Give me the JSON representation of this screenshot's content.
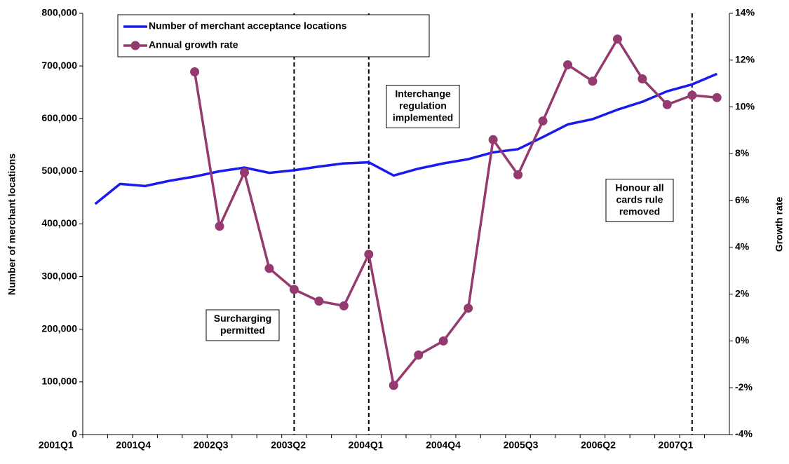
{
  "chart_data": {
    "type": "line",
    "categories": [
      "2001Q1",
      null,
      null,
      "2001Q4",
      null,
      null,
      "2002Q3",
      null,
      null,
      "2003Q2",
      null,
      null,
      "2004Q1",
      null,
      null,
      "2004Q4",
      null,
      null,
      "2005Q3",
      null,
      null,
      "2006Q2",
      null,
      null,
      "2007Q1",
      null
    ],
    "series": [
      {
        "name": "Number of merchant acceptance locations",
        "color": "#1a1aee",
        "axis": "y",
        "marker": false,
        "values": [
          438000,
          476000,
          472000,
          482000,
          490000,
          500000,
          507000,
          497000,
          502000,
          509000,
          515000,
          517000,
          492000,
          505000,
          515000,
          523000,
          536000,
          542000,
          565000,
          589000,
          599000,
          617000,
          632000,
          652000,
          665000,
          685000
        ]
      },
      {
        "name": "Annual growth rate",
        "color": "#953a6e",
        "axis": "y2",
        "marker": true,
        "values": [
          null,
          null,
          null,
          null,
          11.5,
          4.9,
          7.2,
          3.1,
          2.2,
          1.7,
          1.5,
          3.7,
          -1.9,
          -0.6,
          0.0,
          1.4,
          8.6,
          7.1,
          9.4,
          11.8,
          11.1,
          12.9,
          11.2,
          10.1,
          10.5,
          10.4
        ]
      }
    ],
    "ylabel": "Number of merchant locations",
    "y2label": "Growth rate",
    "ylim": [
      0,
      800000
    ],
    "yticks": [
      0,
      {
        "value": 100000,
        "label": "100,000"
      },
      {
        "value": 200000,
        "label": "200,000"
      },
      {
        "value": 300000,
        "label": "300,000"
      },
      {
        "value": 400000,
        "label": "400,000"
      },
      {
        "value": 500000,
        "label": "500,000"
      },
      {
        "value": 600000,
        "label": "600,000"
      },
      {
        "value": 700000,
        "label": "700,000"
      },
      {
        "value": 800000,
        "label": "800,000"
      }
    ],
    "y2lim": [
      -4,
      14
    ],
    "y2ticks": [
      {
        "value": -4,
        "label": "-4%"
      },
      {
        "value": -2,
        "label": "-2%"
      },
      {
        "value": 0,
        "label": "0%"
      },
      {
        "value": 2,
        "label": "2%"
      },
      {
        "value": 4,
        "label": "4%"
      },
      {
        "value": 6,
        "label": "6%"
      },
      {
        "value": 8,
        "label": "8%"
      },
      {
        "value": 10,
        "label": "10%"
      },
      {
        "value": 12,
        "label": "12%"
      },
      {
        "value": 14,
        "label": "14%"
      }
    ],
    "legend": "upper left",
    "grid": false,
    "annotations": [
      {
        "category": 8,
        "lines": [
          "Surcharging",
          "permitted"
        ]
      },
      {
        "category": 11,
        "lines": [
          "Interchange",
          "regulation",
          "implemented"
        ]
      },
      {
        "category": 24,
        "lines": [
          "Honour all",
          "cards rule",
          "removed"
        ]
      }
    ]
  }
}
